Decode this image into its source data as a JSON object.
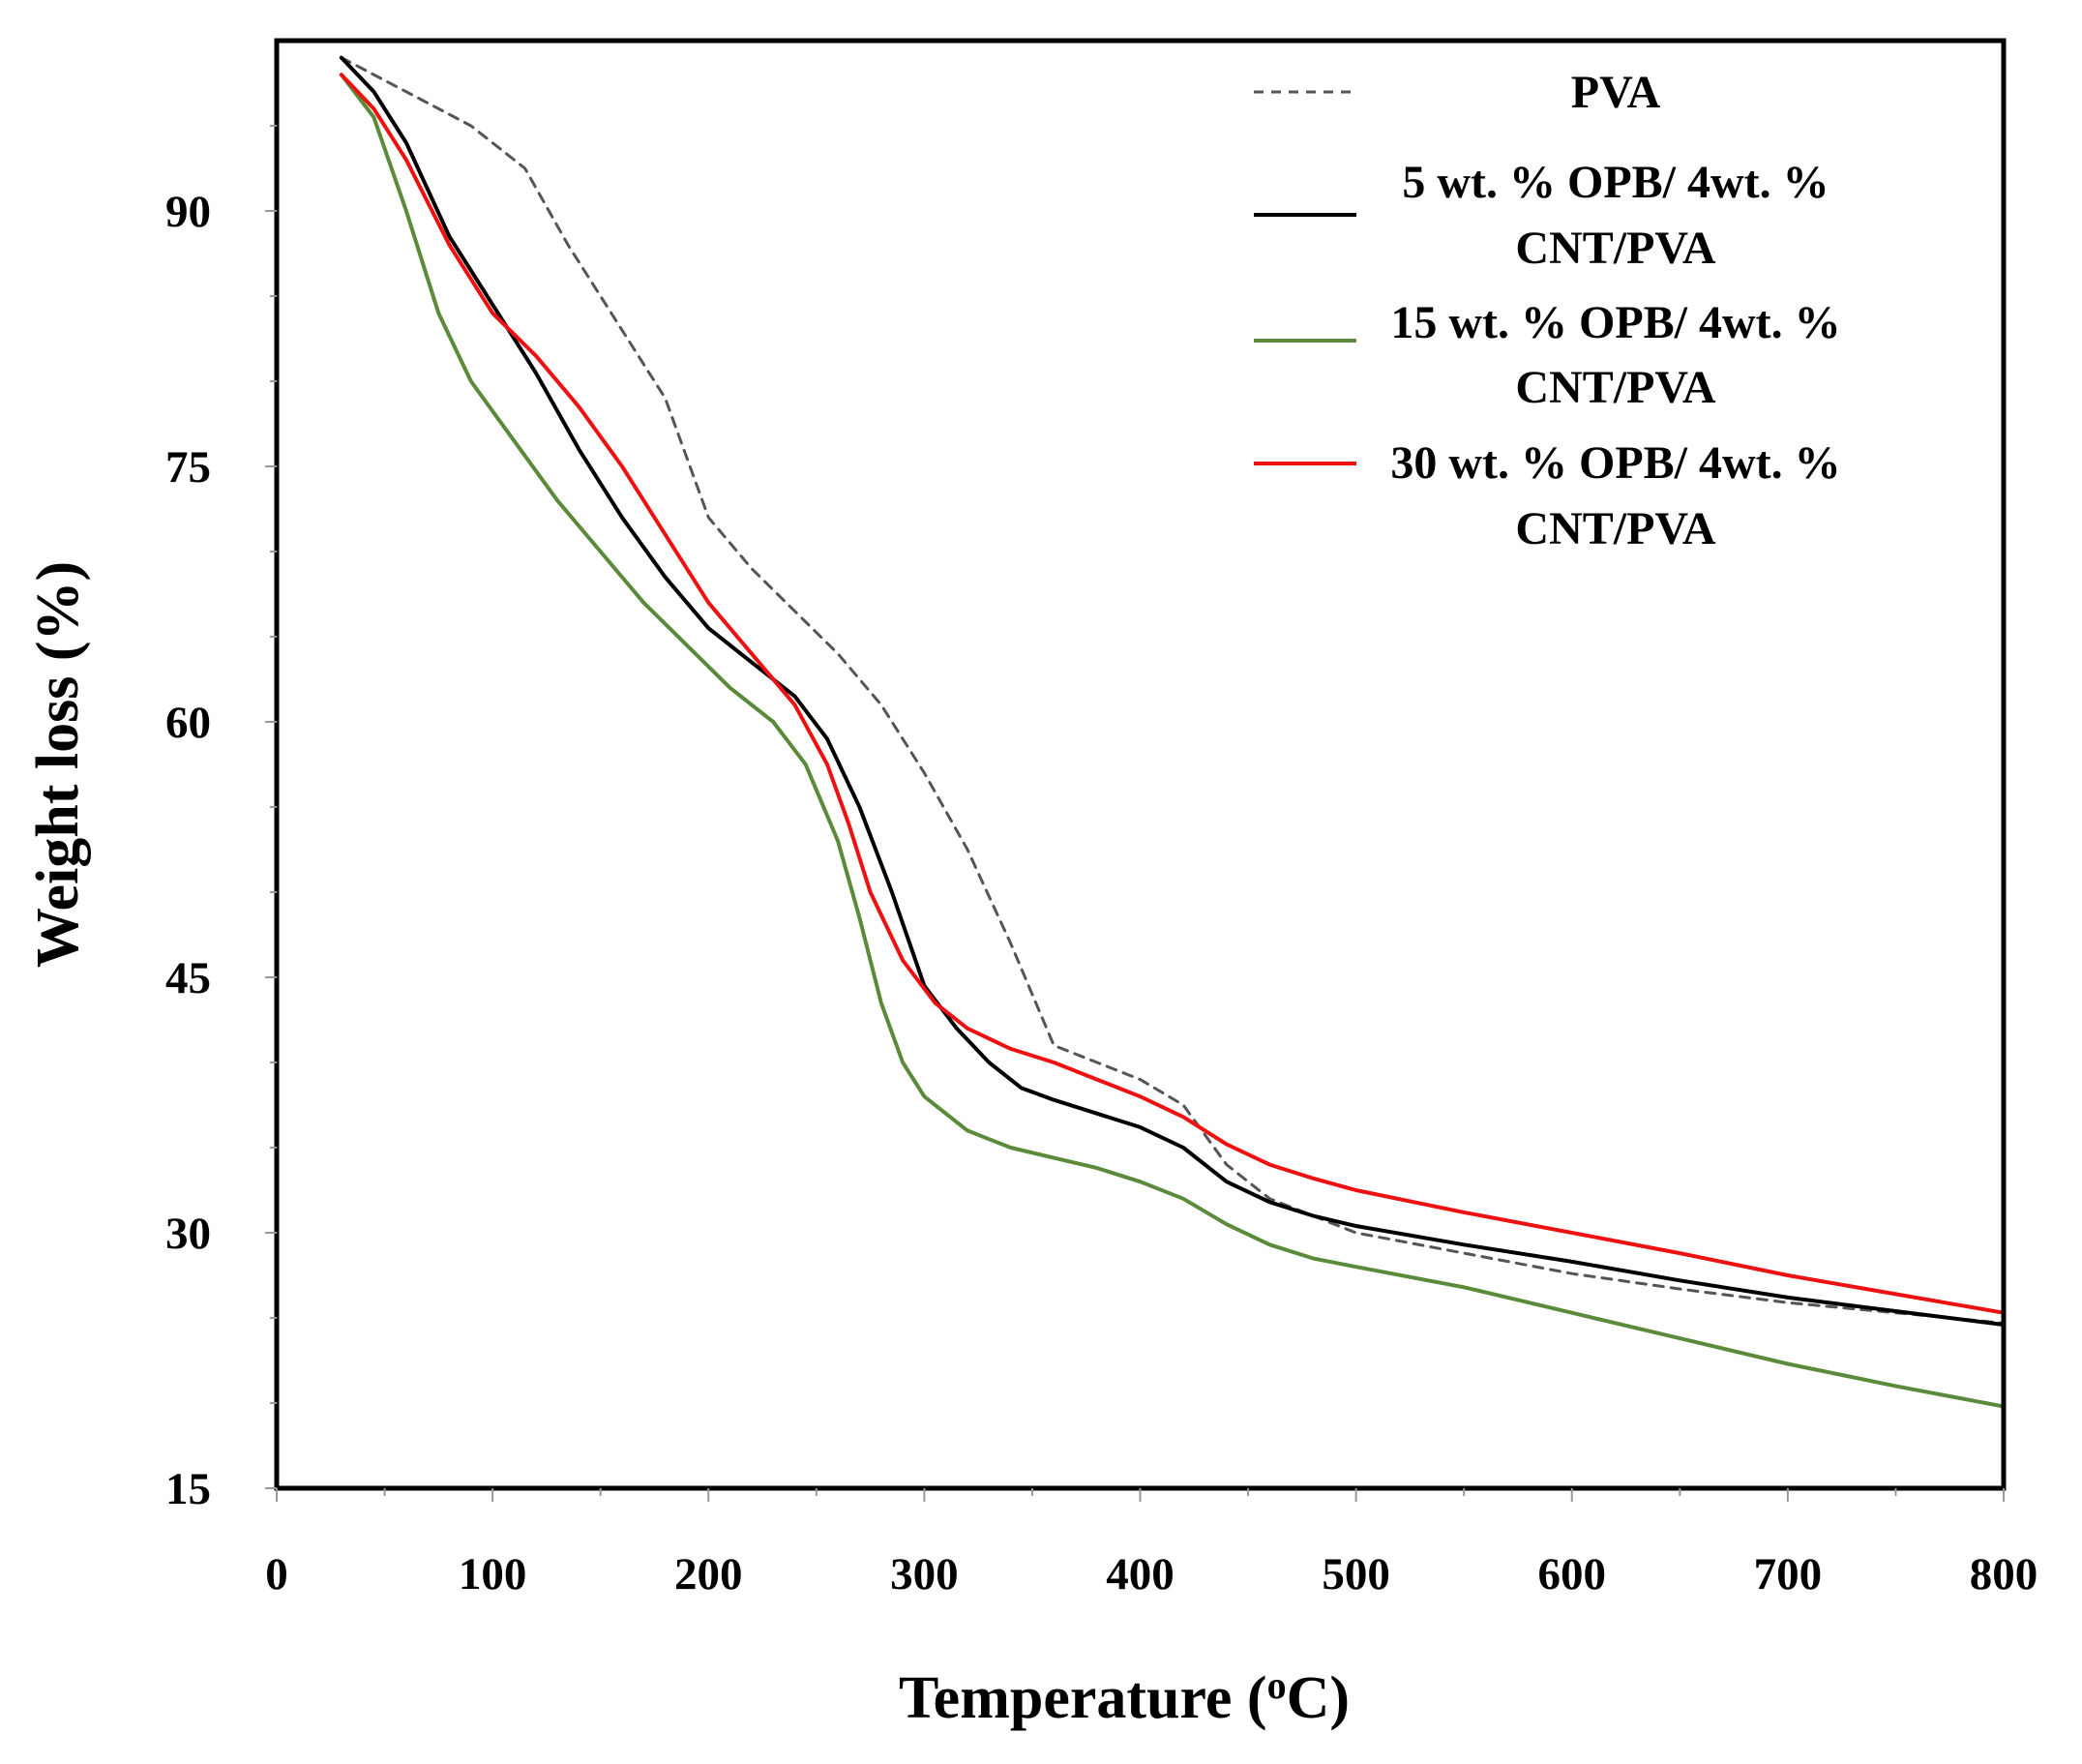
{
  "chart_data": {
    "type": "line",
    "title": "",
    "xlabel_main": "Temperature (",
    "xlabel_sup": "o",
    "xlabel_end": "C)",
    "ylabel": "Weight loss (%)",
    "xlim": [
      0,
      800
    ],
    "ylim": [
      15,
      100
    ],
    "xticks": [
      0,
      100,
      200,
      300,
      400,
      500,
      600,
      700,
      800
    ],
    "yticks": [
      15,
      30,
      45,
      60,
      75,
      90
    ],
    "grid": false,
    "legend_position": "top-right",
    "series": [
      {
        "name": "PVA",
        "legend_lines": [
          "PVA"
        ],
        "color": "#555555",
        "style": "dashed",
        "points": [
          [
            30,
            99
          ],
          [
            60,
            97
          ],
          [
            90,
            95
          ],
          [
            115,
            92.5
          ],
          [
            135,
            88
          ],
          [
            160,
            83
          ],
          [
            180,
            79
          ],
          [
            200,
            72
          ],
          [
            220,
            69
          ],
          [
            240,
            66.5
          ],
          [
            260,
            64
          ],
          [
            280,
            61
          ],
          [
            300,
            57
          ],
          [
            320,
            52.5
          ],
          [
            340,
            47
          ],
          [
            360,
            41
          ],
          [
            380,
            40
          ],
          [
            400,
            39
          ],
          [
            420,
            37.5
          ],
          [
            440,
            34
          ],
          [
            460,
            32
          ],
          [
            480,
            31
          ],
          [
            500,
            30
          ],
          [
            550,
            28.8
          ],
          [
            600,
            27.6
          ],
          [
            650,
            26.7
          ],
          [
            700,
            25.9
          ],
          [
            750,
            25.3
          ],
          [
            800,
            24.7
          ]
        ]
      },
      {
        "name": "5 wt. % OPB/ 4wt. % CNT/PVA",
        "legend_lines": [
          "5 wt. % OPB/ 4wt. %",
          "CNT/PVA"
        ],
        "color": "#000000",
        "style": "solid",
        "points": [
          [
            30,
            99
          ],
          [
            45,
            97
          ],
          [
            60,
            94
          ],
          [
            80,
            88.5
          ],
          [
            100,
            84.5
          ],
          [
            120,
            80.5
          ],
          [
            140,
            76
          ],
          [
            160,
            72
          ],
          [
            180,
            68.5
          ],
          [
            200,
            65.5
          ],
          [
            220,
            63.5
          ],
          [
            240,
            61.5
          ],
          [
            255,
            59
          ],
          [
            270,
            55
          ],
          [
            285,
            50
          ],
          [
            300,
            44.5
          ],
          [
            315,
            42
          ],
          [
            330,
            40
          ],
          [
            345,
            38.5
          ],
          [
            360,
            37.8
          ],
          [
            380,
            37
          ],
          [
            400,
            36.2
          ],
          [
            420,
            35
          ],
          [
            440,
            33
          ],
          [
            460,
            31.8
          ],
          [
            480,
            31
          ],
          [
            500,
            30.4
          ],
          [
            550,
            29.3
          ],
          [
            600,
            28.3
          ],
          [
            650,
            27.2
          ],
          [
            700,
            26.2
          ],
          [
            750,
            25.4
          ],
          [
            800,
            24.6
          ]
        ]
      },
      {
        "name": "15 wt. % OPB/ 4wt. % CNT/PVA",
        "legend_lines": [
          "15 wt. % OPB/ 4wt. %",
          "CNT/PVA"
        ],
        "color": "#5a8a3a",
        "style": "solid",
        "points": [
          [
            30,
            98
          ],
          [
            45,
            95.5
          ],
          [
            60,
            90
          ],
          [
            75,
            84
          ],
          [
            90,
            80
          ],
          [
            110,
            76.5
          ],
          [
            130,
            73
          ],
          [
            150,
            70
          ],
          [
            170,
            67
          ],
          [
            190,
            64.5
          ],
          [
            210,
            62
          ],
          [
            230,
            60
          ],
          [
            245,
            57.5
          ],
          [
            260,
            53
          ],
          [
            270,
            48.5
          ],
          [
            280,
            43.5
          ],
          [
            290,
            40
          ],
          [
            300,
            38
          ],
          [
            320,
            36
          ],
          [
            340,
            35
          ],
          [
            360,
            34.4
          ],
          [
            380,
            33.8
          ],
          [
            400,
            33
          ],
          [
            420,
            32
          ],
          [
            440,
            30.5
          ],
          [
            460,
            29.3
          ],
          [
            480,
            28.5
          ],
          [
            500,
            28
          ],
          [
            550,
            26.8
          ],
          [
            600,
            25.3
          ],
          [
            650,
            23.8
          ],
          [
            700,
            22.3
          ],
          [
            750,
            21
          ],
          [
            800,
            19.8
          ]
        ]
      },
      {
        "name": "30 wt. % OPB/ 4wt. % CNT/PVA",
        "legend_lines": [
          "30 wt. % OPB/ 4wt. %",
          "CNT/PVA"
        ],
        "color": "#ee1111",
        "style": "solid",
        "points": [
          [
            30,
            98
          ],
          [
            45,
            96
          ],
          [
            60,
            93
          ],
          [
            80,
            88
          ],
          [
            100,
            84
          ],
          [
            120,
            81.5
          ],
          [
            140,
            78.5
          ],
          [
            160,
            75
          ],
          [
            180,
            71
          ],
          [
            200,
            67
          ],
          [
            220,
            64
          ],
          [
            240,
            61
          ],
          [
            255,
            57.5
          ],
          [
            265,
            54
          ],
          [
            275,
            50
          ],
          [
            290,
            46
          ],
          [
            305,
            43.5
          ],
          [
            320,
            42
          ],
          [
            340,
            40.8
          ],
          [
            360,
            40
          ],
          [
            380,
            39
          ],
          [
            400,
            38
          ],
          [
            420,
            36.8
          ],
          [
            440,
            35.2
          ],
          [
            460,
            34
          ],
          [
            480,
            33.2
          ],
          [
            500,
            32.5
          ],
          [
            550,
            31.2
          ],
          [
            600,
            30
          ],
          [
            650,
            28.8
          ],
          [
            700,
            27.5
          ],
          [
            750,
            26.4
          ],
          [
            800,
            25.3
          ]
        ]
      }
    ]
  }
}
